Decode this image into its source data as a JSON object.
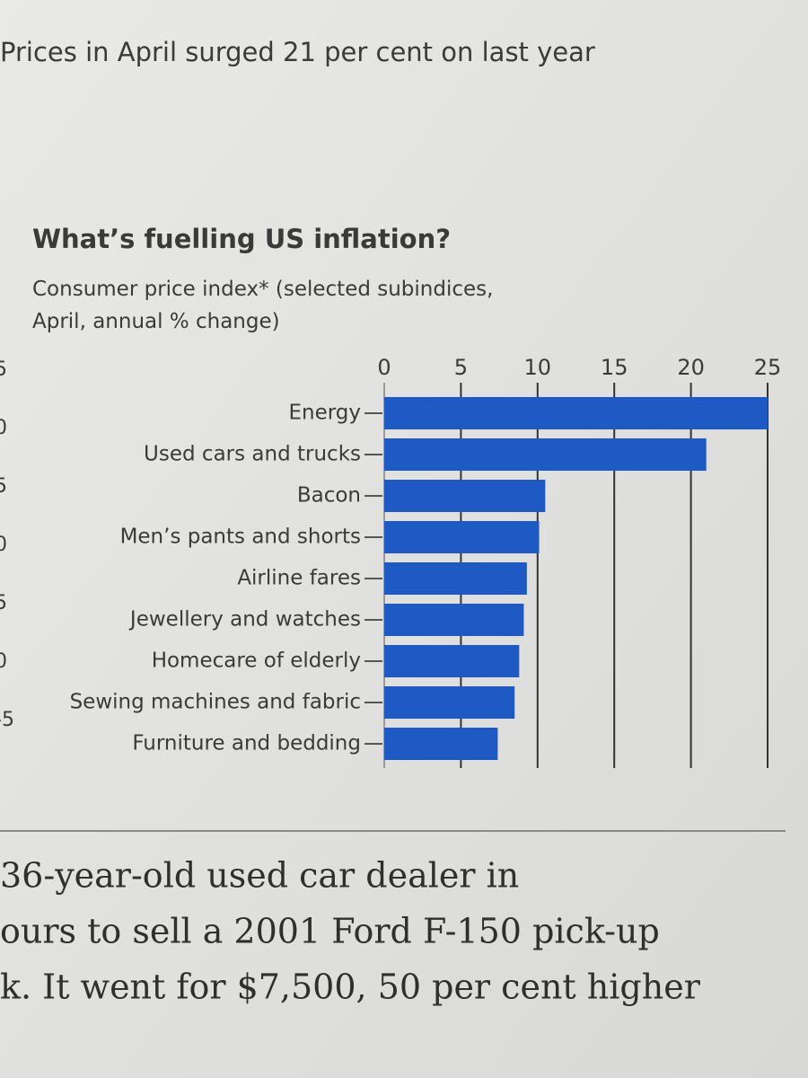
{
  "headline": "Prices in April surged 21 per cent on last year",
  "cropped_axis_labels": [
    "5",
    "0",
    "5",
    "0",
    "5",
    "0",
    "-5"
  ],
  "chart_data": {
    "type": "bar",
    "orientation": "horizontal",
    "title": "What’s fuelling US inflation?",
    "subtitle": "Consumer price index* (selected subindices, April, annual % change)",
    "categories": [
      "Energy",
      "Used cars and trucks",
      "Bacon",
      "Men’s pants and shorts",
      "Airline fares",
      "Jewellery and watches",
      "Homecare of elderly",
      "Sewing machines and fabric",
      "Furniture and bedding"
    ],
    "values": [
      25,
      21,
      10.5,
      10.1,
      9.3,
      9.1,
      8.8,
      8.5,
      7.4
    ],
    "color": "#1f5ac4",
    "xlim": [
      0,
      25
    ],
    "xticks": [
      0,
      5,
      10,
      15,
      20,
      25
    ],
    "grid": true
  },
  "body_lines": [
    "36-year-old used car dealer in",
    "ours to sell a 2001 Ford F-150 pick-up",
    "k. It went for $7,500, 50 per cent higher"
  ]
}
